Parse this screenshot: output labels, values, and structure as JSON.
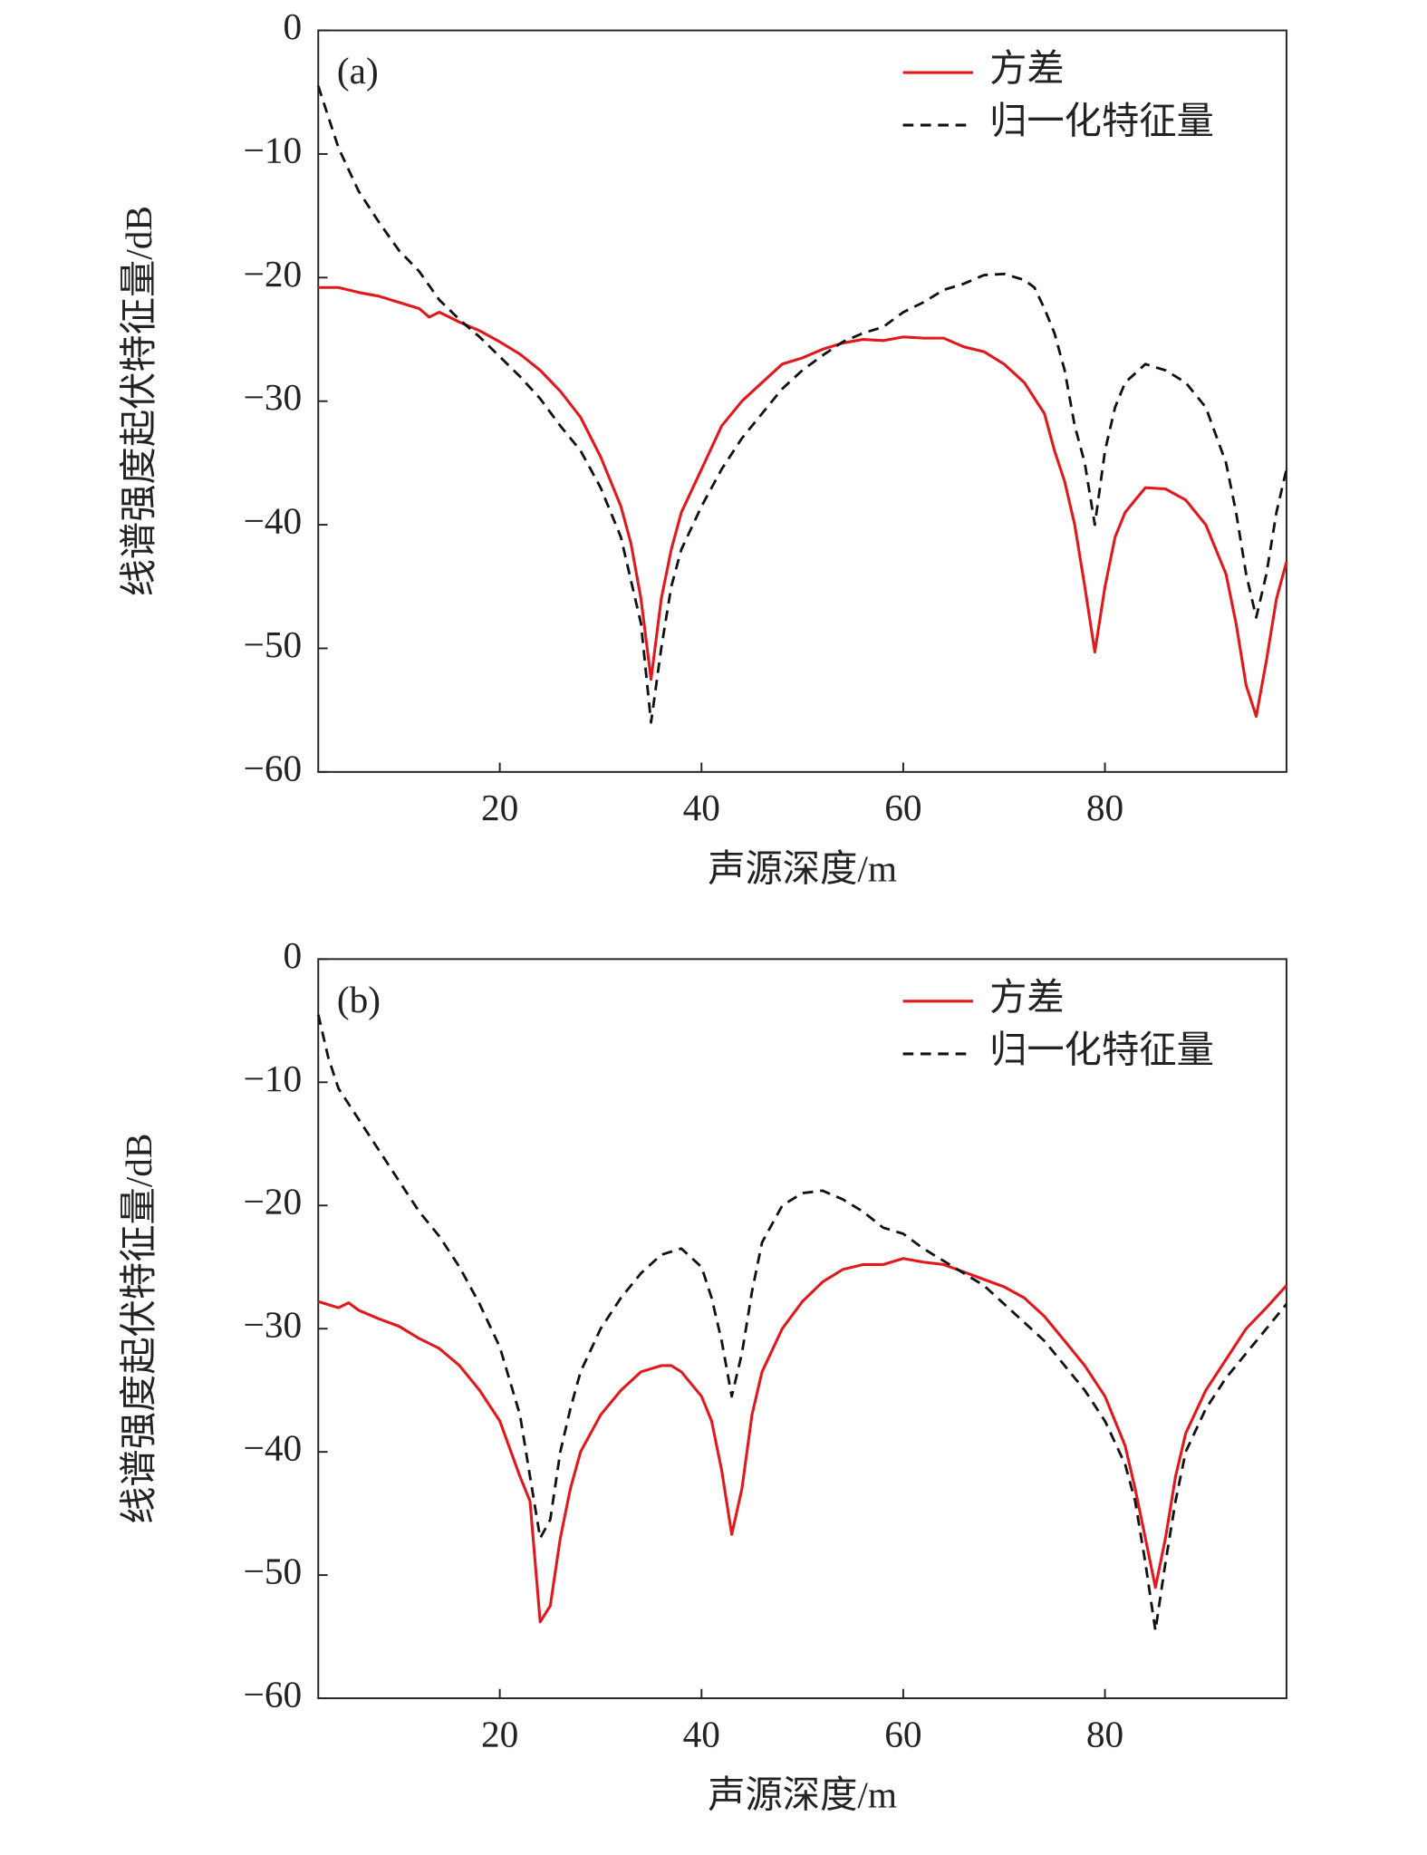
{
  "chart_data": [
    {
      "type": "line",
      "annotation": "(a)",
      "xlabel": "声源深度/m",
      "ylabel": "线谱强度起伏特征量/dB",
      "xlim": [
        2,
        98
      ],
      "ylim": [
        -60,
        0
      ],
      "xticks": [
        20,
        40,
        60,
        80
      ],
      "yticks": [
        {
          "value": -60,
          "label": "−60"
        },
        {
          "value": -50,
          "label": "−50"
        },
        {
          "value": -40,
          "label": "−40"
        },
        {
          "value": -30,
          "label": "−30"
        },
        {
          "value": -20,
          "label": "−20"
        },
        {
          "value": -10,
          "label": "−10"
        },
        0
      ],
      "legend": "upper right",
      "series": [
        {
          "name": "方差",
          "color": "#e0191c",
          "dash": false,
          "x": [
            2,
            4,
            6,
            8,
            10,
            12,
            13,
            14,
            16,
            18,
            20,
            22,
            24,
            26,
            28,
            30,
            32,
            33,
            34,
            35,
            36,
            37,
            38,
            40,
            42,
            44,
            46,
            48,
            50,
            52,
            54,
            56,
            58,
            60,
            62,
            64,
            66,
            68,
            70,
            72,
            74,
            75,
            76,
            77,
            78,
            79,
            80,
            81,
            82,
            83,
            84,
            86,
            88,
            90,
            92,
            93,
            94,
            95,
            96,
            97,
            98
          ],
          "values": [
            -20.8,
            -20.8,
            -21.2,
            -21.5,
            -22,
            -22.5,
            -23.2,
            -22.8,
            -23.6,
            -24.3,
            -25.2,
            -26.2,
            -27.5,
            -29.2,
            -31.3,
            -34.5,
            -38.5,
            -41.5,
            -46,
            -52.5,
            -46,
            -42,
            -39,
            -35.5,
            -32,
            -30,
            -28.5,
            -27,
            -26.5,
            -25.8,
            -25.3,
            -25,
            -25.1,
            -24.8,
            -24.9,
            -24.9,
            -25.6,
            -26,
            -27,
            -28.5,
            -31,
            -34,
            -36.5,
            -40,
            -45,
            -50.3,
            -45,
            -41,
            -39,
            -38,
            -37,
            -37.1,
            -38,
            -40,
            -44,
            -48,
            -53,
            -55.5,
            -51,
            -46,
            -43
          ]
        },
        {
          "name": "归一化特征量",
          "color": "#111111",
          "dash": true,
          "x": [
            2,
            4,
            6,
            8,
            10,
            12,
            14,
            16,
            18,
            20,
            22,
            24,
            26,
            28,
            30,
            32,
            34,
            35,
            36,
            37,
            38,
            40,
            42,
            44,
            46,
            48,
            50,
            52,
            54,
            56,
            58,
            60,
            62,
            64,
            66,
            68,
            70,
            72,
            73,
            74,
            75,
            76,
            77,
            78,
            79,
            80,
            81,
            82,
            84,
            86,
            88,
            90,
            92,
            93,
            94,
            95,
            96,
            97,
            98
          ],
          "values": [
            -4.5,
            -9.5,
            -13,
            -15.5,
            -17.8,
            -19.5,
            -21.8,
            -23.4,
            -24.8,
            -26.4,
            -28,
            -29.8,
            -32,
            -34,
            -37,
            -41,
            -48,
            -56,
            -50,
            -45,
            -42,
            -38.5,
            -35.5,
            -33,
            -31,
            -29,
            -27.5,
            -26.3,
            -25.2,
            -24.5,
            -24,
            -22.8,
            -22,
            -21,
            -20.5,
            -19.8,
            -19.7,
            -20.2,
            -20.8,
            -22.5,
            -24.5,
            -27.5,
            -32,
            -35,
            -40,
            -34,
            -30.5,
            -28.5,
            -27,
            -27.5,
            -28.5,
            -30.5,
            -35,
            -39,
            -44,
            -47.5,
            -44,
            -39,
            -35.5
          ]
        }
      ]
    },
    {
      "type": "line",
      "annotation": "(b)",
      "xlabel": "声源深度/m",
      "ylabel": "线谱强度起伏特征量/dB",
      "xlim": [
        2,
        98
      ],
      "ylim": [
        -60,
        0
      ],
      "xticks": [
        20,
        40,
        60,
        80
      ],
      "yticks": [
        {
          "value": -60,
          "label": "−60"
        },
        {
          "value": -50,
          "label": "−50"
        },
        {
          "value": -40,
          "label": "−40"
        },
        {
          "value": -30,
          "label": "−30"
        },
        {
          "value": -20,
          "label": "−20"
        },
        {
          "value": -10,
          "label": "−10"
        },
        0
      ],
      "legend": "upper right",
      "series": [
        {
          "name": "方差",
          "color": "#e0191c",
          "dash": false,
          "x": [
            2,
            4,
            5,
            6,
            8,
            10,
            12,
            14,
            16,
            18,
            20,
            22,
            23,
            24,
            25,
            26,
            27,
            28,
            30,
            32,
            34,
            36,
            37,
            38,
            40,
            41,
            42,
            43,
            44,
            45,
            46,
            48,
            50,
            52,
            54,
            56,
            58,
            60,
            62,
            64,
            66,
            68,
            70,
            72,
            74,
            76,
            78,
            80,
            82,
            83,
            84,
            85,
            86,
            87,
            88,
            90,
            92,
            94,
            96,
            98
          ],
          "values": [
            -27.8,
            -28.3,
            -27.9,
            -28.5,
            -29.2,
            -29.8,
            -30.8,
            -31.6,
            -33,
            -35,
            -37.5,
            -42,
            -44,
            -53.8,
            -52.5,
            -47,
            -43,
            -40,
            -37,
            -35,
            -33.5,
            -33,
            -33,
            -33.5,
            -35.5,
            -37.5,
            -41.5,
            -46.7,
            -43,
            -37,
            -33.5,
            -30,
            -27.8,
            -26.2,
            -25.2,
            -24.8,
            -24.8,
            -24.3,
            -24.6,
            -24.8,
            -25.4,
            -26,
            -26.6,
            -27.5,
            -29,
            -31,
            -33,
            -35.5,
            -39.5,
            -43,
            -47,
            -51,
            -47,
            -42,
            -38.5,
            -35,
            -32.5,
            -30,
            -28.3,
            -26.5
          ]
        },
        {
          "name": "归一化特征量",
          "color": "#111111",
          "dash": true,
          "x": [
            2,
            3,
            4,
            6,
            8,
            10,
            12,
            14,
            16,
            18,
            20,
            22,
            23,
            24,
            25,
            26,
            27,
            28,
            30,
            32,
            34,
            36,
            38,
            40,
            41,
            42,
            43,
            44,
            45,
            46,
            48,
            50,
            52,
            54,
            56,
            58,
            60,
            62,
            64,
            66,
            68,
            70,
            72,
            74,
            76,
            78,
            80,
            82,
            83,
            84,
            85,
            86,
            87,
            88,
            90,
            92,
            94,
            96,
            98
          ],
          "values": [
            -4.5,
            -8,
            -10.5,
            -13,
            -15.5,
            -18,
            -20.5,
            -22.5,
            -25,
            -28,
            -31.5,
            -37,
            -42,
            -47,
            -45.5,
            -40,
            -36.5,
            -33.5,
            -30,
            -27.5,
            -25.5,
            -24,
            -23.5,
            -25,
            -27.5,
            -31,
            -35.5,
            -32,
            -27,
            -23,
            -20,
            -19,
            -18.8,
            -19.5,
            -20.5,
            -21.8,
            -22.3,
            -23.5,
            -24.5,
            -25.5,
            -26.5,
            -28,
            -29.5,
            -31,
            -33,
            -35,
            -37.5,
            -41,
            -44,
            -49,
            -54.5,
            -49,
            -44,
            -40,
            -36.5,
            -34,
            -32,
            -30,
            -28
          ]
        }
      ]
    }
  ]
}
